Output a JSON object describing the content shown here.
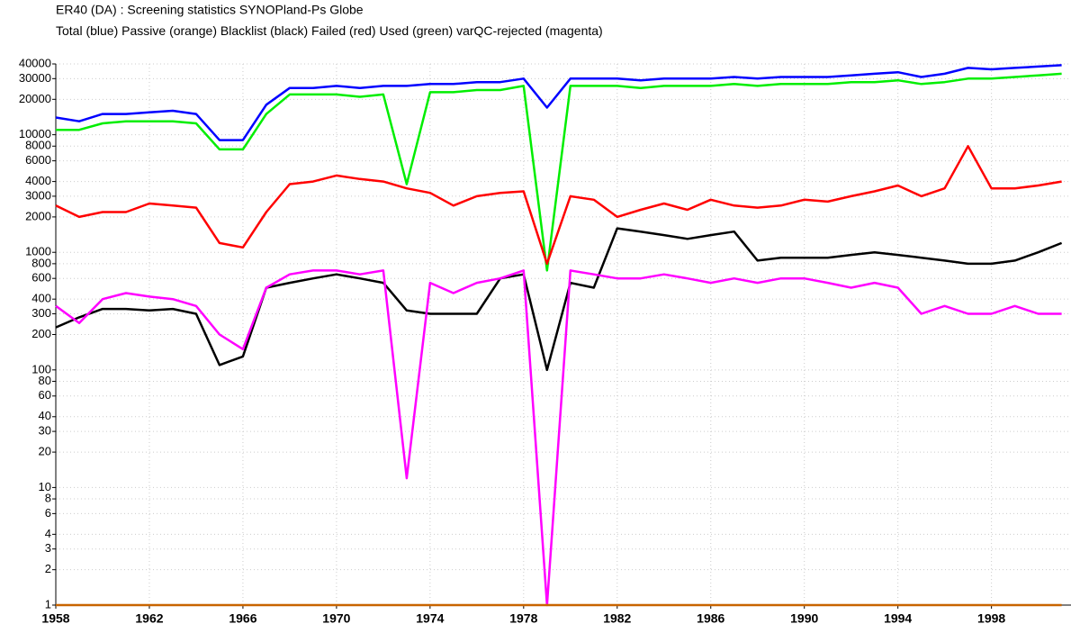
{
  "chart_data": {
    "type": "line",
    "title": "ER40 (DA)  : Screening statistics  SYNOPland-Ps  Globe",
    "log_scale_y": true,
    "grid": true,
    "x": [
      1958,
      1959,
      1960,
      1961,
      1962,
      1963,
      1964,
      1965,
      1966,
      1967,
      1968,
      1969,
      1970,
      1971,
      1972,
      1973,
      1974,
      1975,
      1976,
      1977,
      1978,
      1979,
      1980,
      1981,
      1982,
      1983,
      1984,
      1985,
      1986,
      1987,
      1988,
      1989,
      1990,
      1991,
      1992,
      1993,
      1994,
      1995,
      1996,
      1997,
      1998,
      1999,
      2000,
      2001
    ],
    "xlim": [
      1958,
      2001.4
    ],
    "xticks": [
      1958,
      1962,
      1966,
      1970,
      1974,
      1978,
      1982,
      1986,
      1990,
      1994,
      1998
    ],
    "ylim": [
      1,
      40000
    ],
    "yticks": [
      1,
      2,
      3,
      4,
      6,
      8,
      10,
      20,
      30,
      40,
      60,
      80,
      100,
      200,
      300,
      400,
      600,
      800,
      1000,
      2000,
      3000,
      4000,
      6000,
      8000,
      10000,
      20000,
      30000,
      40000
    ],
    "series": [
      {
        "name": "Total (blue)",
        "color": "#0000ff",
        "values": [
          14000,
          13000,
          15000,
          15000,
          15500,
          16000,
          15000,
          9000,
          9000,
          18000,
          25000,
          25000,
          26000,
          25000,
          26000,
          26000,
          27000,
          27000,
          28000,
          28000,
          30000,
          17000,
          30000,
          30000,
          30000,
          29000,
          30000,
          30000,
          30000,
          31000,
          30000,
          31000,
          31000,
          31000,
          32000,
          33000,
          34000,
          31000,
          33000,
          37000,
          36000,
          37000,
          38000,
          39000
        ]
      },
      {
        "name": "Passive (orange)",
        "color": "#c86400",
        "values": [
          1,
          1,
          1,
          1,
          1,
          1,
          1,
          1,
          1,
          1,
          1,
          1,
          1,
          1,
          1,
          1,
          1,
          1,
          1,
          1,
          1,
          1,
          1,
          1,
          1,
          1,
          1,
          1,
          1,
          1,
          1,
          1,
          1,
          1,
          1,
          1,
          1,
          1,
          1,
          1,
          1,
          1,
          1,
          1
        ]
      },
      {
        "name": "Blacklist (black)",
        "color": "#000000",
        "values": [
          230,
          280,
          330,
          330,
          320,
          330,
          300,
          110,
          130,
          500,
          550,
          600,
          650,
          600,
          550,
          320,
          300,
          300,
          300,
          600,
          650,
          100,
          550,
          500,
          1600,
          1500,
          1400,
          1300,
          1400,
          1500,
          850,
          900,
          900,
          900,
          950,
          1000,
          950,
          900,
          850,
          800,
          800,
          850,
          1000,
          1200
        ]
      },
      {
        "name": "Failed (red)",
        "color": "#ff0000",
        "values": [
          2500,
          2000,
          2200,
          2200,
          2600,
          2500,
          2400,
          1200,
          1100,
          2200,
          3800,
          4000,
          4500,
          4200,
          4000,
          3500,
          3200,
          2500,
          3000,
          3200,
          3300,
          800,
          3000,
          2800,
          2000,
          2300,
          2600,
          2300,
          2800,
          2500,
          2400,
          2500,
          2800,
          2700,
          3000,
          3300,
          3700,
          3000,
          3500,
          8000,
          3500,
          3500,
          3700,
          4000
        ]
      },
      {
        "name": "Used (green)",
        "color": "#00ee00",
        "values": [
          11000,
          11000,
          12500,
          13000,
          13000,
          13000,
          12500,
          7500,
          7500,
          15000,
          22000,
          22000,
          22000,
          21000,
          22000,
          3800,
          23000,
          23000,
          24000,
          24000,
          26000,
          700,
          26000,
          26000,
          26000,
          25000,
          26000,
          26000,
          26000,
          27000,
          26000,
          27000,
          27000,
          27000,
          28000,
          28000,
          29000,
          27000,
          28000,
          30000,
          30000,
          31000,
          32000,
          33000
        ]
      },
      {
        "name": "varQC-rejected (magenta)",
        "color": "#ff00ff",
        "values": [
          350,
          250,
          400,
          450,
          420,
          400,
          350,
          200,
          150,
          500,
          650,
          700,
          700,
          650,
          700,
          12,
          550,
          450,
          550,
          600,
          700,
          1,
          700,
          650,
          600,
          600,
          650,
          600,
          550,
          600,
          550,
          600,
          600,
          550,
          500,
          550,
          500,
          300,
          350,
          300,
          300,
          350,
          300,
          300
        ]
      }
    ]
  }
}
